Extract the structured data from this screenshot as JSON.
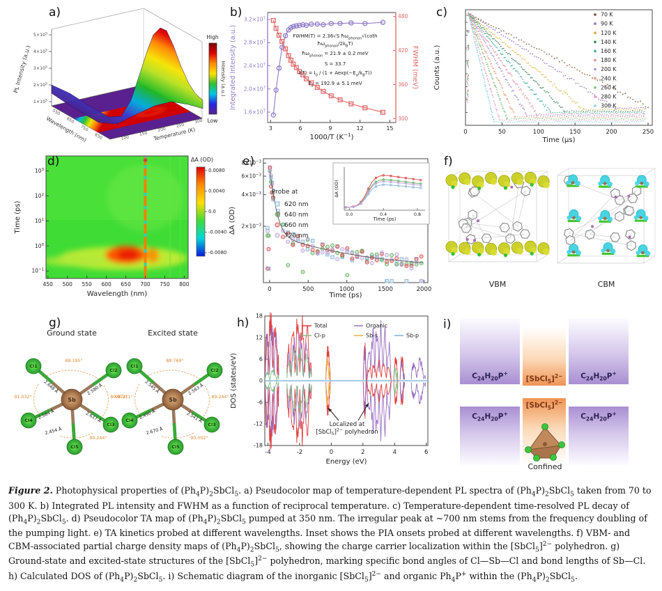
{
  "caption": {
    "label": "Figure 2.",
    "text": " Photophysical properties of (Ph_{4}P)_{2}SbCl_{5}. a) Pseudocolor map of temperature-dependent PL spectra of (Ph_{4}P)_{2}SbCl_{5} taken from 70 to 300 K. b) Integrated PL intensity and FWHM as a function of reciprocal temperature. c) Temperature-dependent time-resolved PL decay of (Ph_{4}P)_{2}SbCl_{5}. d) Pseudocolor TA map of (Ph_{4}P)_{2}SbCl_{5} pumped at 350 nm. The irregular peak at ~700 nm stems from the frequency doubling of the pumping light. e) TA kinetics probed at different wavelengths. Inset shows the PIA onsets probed at different wavelengths. f) VBM- and CBM-associated partial charge density maps of (Ph_{4}P)_{2}SbCl_{5}, showing the charge carrier localization within the [SbCl_{5}]^{2−} polyhedron. g) Ground-state and excited-state structures of the [SbCl_{5}]^{2−} polyhedron, marking specific bond angles of Cl—Sb—Cl and bond lengths of Sb—Cl. h) Calculated DOS of (Ph_{4}P)_{2}SbCl_{5}. i) Schematic diagram of the inorganic [SbCl_{5}]^{2−} and organic Ph_{4}P^{+} within the (Ph_{4}P)_{2}SbCl_{5}."
  },
  "panels": {
    "a": {
      "label": "a)"
    },
    "b": {
      "label": "b)",
      "equations": [
        "FWHM(T) = 2.36√S ħω_{phonon}√(coth ħω_{phonon}/2k_{B}T)",
        "ħω_{phonon} = 21.9 ± 0.2 meV",
        "S = 33.7",
        "I(T) = I_{0} / (1 + Aexp(−E_{a}/k_{B}T))",
        "E_{a} = 192.9 ± 5.1 meV"
      ]
    },
    "c": {
      "label": "c)"
    },
    "d": {
      "label": "d)"
    },
    "e": {
      "label": "e)"
    },
    "f": {
      "label": "f)",
      "left_label": "VBM",
      "right_label": "CBM"
    },
    "g": {
      "label": "g)",
      "atoms": {
        "sb": "Sb",
        "cl": [
          "Cl1",
          "Cl2",
          "Cl3",
          "Cl4",
          "Cl5"
        ]
      },
      "ground": {
        "title": "Ground state",
        "bonds": [
          "2.648 Å",
          "2.580 Å",
          "2.637 Å",
          "2.584 Å",
          "2.454 Å"
        ],
        "angles": [
          "88.195°",
          "89.972°",
          "90.244°",
          "91.032°"
        ]
      },
      "excited": {
        "title": "Excited state",
        "bonds": [
          "2.545 Å",
          "2.563 Å",
          "2.541 Å",
          "2.490 Å",
          "2.670 Å"
        ],
        "angles": [
          "88.769°",
          "89.244°",
          "90.002°",
          "90.211°"
        ]
      }
    },
    "h": {
      "label": "h)"
    },
    "i": {
      "label": "i)",
      "cation": "C_{24}H_{20}P^{+}",
      "anion": "[SbCl_{5}]^{2−}",
      "confined": "Confined"
    }
  },
  "chart_data": [
    {
      "panel": "a",
      "type": "surface",
      "zlabel": "PL Intensity (a.u.)",
      "zticks": [
        "5×10^{5}",
        "4×10^{5}",
        "3×10^{5}",
        "2×10^{5}",
        "1×10^{5}"
      ],
      "xlabel": "Wavelength (nm)",
      "xticks": [
        "550",
        "650",
        "750",
        "850"
      ],
      "ylabel": "Temperature (K)",
      "yticks": [
        "100",
        "150",
        "200",
        "250",
        "300"
      ],
      "colorbar": {
        "title": "Intensity (a.u.)",
        "high": "High",
        "low": "Low",
        "colors": [
          "#7a0000",
          "#e00000",
          "#ff8c00",
          "#ffe000",
          "#30c030",
          "#00c8e8",
          "#2828e0",
          "#5a2090"
        ]
      }
    },
    {
      "panel": "b",
      "type": "scatter-line",
      "xlabel": "1000/T (K^{−1})",
      "xticks": [
        3,
        6,
        9,
        12,
        15
      ],
      "xlim": [
        2.7,
        15.6
      ],
      "left_axis": {
        "label": "Integrated Intensity (a.u.)",
        "color": "#8f7bc8",
        "ticks": [
          "1.6×10^{7}",
          "2.0×10^{7}",
          "2.4×10^{7}",
          "2.8×10^{7}",
          "3.2×10^{7}"
        ],
        "tick_values": [
          1.6,
          2.0,
          2.4,
          2.8,
          3.2
        ],
        "lim": [
          1.42,
          3.32
        ]
      },
      "right_axis": {
        "label": "FWHM (meV)",
        "color": "#e06666",
        "ticks": [
          300,
          360,
          420,
          480
        ],
        "lim": [
          293,
          487
        ]
      },
      "x": [
        3.28,
        3.55,
        3.85,
        4.15,
        4.5,
        4.8,
        5.05,
        5.3,
        5.6,
        5.9,
        6.25,
        6.6,
        7.1,
        7.7,
        8.3,
        9.1,
        10.0,
        11.1,
        12.5,
        14.3
      ],
      "series": [
        {
          "name": "Integrated Intensity",
          "marker": "circle",
          "color": "#8f7bc8",
          "values": [
            1.55,
            1.98,
            2.36,
            2.72,
            2.92,
            3.02,
            3.06,
            3.08,
            3.09,
            3.1,
            3.11,
            3.1,
            3.12,
            3.12,
            3.11,
            3.13,
            3.13,
            3.14,
            3.13,
            3.15
          ]
        },
        {
          "name": "FWHM",
          "marker": "square",
          "color": "#e06666",
          "values": [
            473,
            459,
            447,
            436,
            423,
            411,
            403,
            396,
            390,
            383,
            377,
            370,
            363,
            355,
            348,
            340,
            333,
            326,
            319,
            311
          ]
        }
      ]
    },
    {
      "panel": "c",
      "type": "decay-scatter",
      "xlabel": "Time (μs)",
      "xticks": [
        0,
        50,
        100,
        150,
        200,
        250
      ],
      "xlim": [
        0,
        250
      ],
      "ylabel": "Counts (a.u.)",
      "series": [
        {
          "label": "70 K",
          "color": "#7b4a2d",
          "t_end": 250
        },
        {
          "label": "90 K",
          "color": "#8d6cc3",
          "t_end": 205
        },
        {
          "label": "120 K",
          "color": "#e3a92f",
          "t_end": 162
        },
        {
          "label": "140 K",
          "color": "#2f7d4f",
          "t_end": 136
        },
        {
          "label": "160 K",
          "color": "#37a695",
          "t_end": 116
        },
        {
          "label": "180 K",
          "color": "#e2889b",
          "t_end": 98
        },
        {
          "label": "200 K",
          "color": "#a98fd6",
          "t_end": 84
        },
        {
          "label": "240 K",
          "color": "#ec9f7a",
          "t_end": 68
        },
        {
          "label": "260 K",
          "color": "#79c079",
          "t_end": 57
        },
        {
          "label": "280 K",
          "color": "#f0a0b8",
          "t_end": 47
        },
        {
          "label": "300 K",
          "color": "#7fd4e8",
          "t_end": 39
        }
      ]
    },
    {
      "panel": "d",
      "type": "heatmap",
      "xlabel": "Wavelength (nm)",
      "xticks": [
        450,
        500,
        550,
        600,
        650,
        700,
        750,
        800
      ],
      "ylabel": "Time (ps)",
      "yticks": [
        "10^{3}",
        "10^{2}",
        "10^{1}",
        "10^{0}",
        "10^{−1}"
      ],
      "base_color": "#3fdc35",
      "stripe_nm": 700,
      "hot_region": {
        "wavelength_nm": [
          590,
          700
        ],
        "time_ps": [
          0.2,
          1.5
        ]
      },
      "colorbar": {
        "title": "ΔA (OD)",
        "ticks": [
          "0.0080",
          "0.0040",
          "0.0",
          "-0.0040",
          "-0.0080"
        ],
        "colors": [
          "#e00000",
          "#ff8c00",
          "#ffe000",
          "#3fdc35",
          "#00d8d8",
          "#0018e0"
        ]
      }
    },
    {
      "panel": "e",
      "type": "kinetics-scatter",
      "xlabel": "Time (ps)",
      "xticks": [
        0,
        500,
        1000,
        1500,
        2000
      ],
      "ylabel": "ΔA (OD)",
      "yticks": [
        "8×10^{−3}",
        "6×10^{−3}",
        "4×10^{−3}",
        "2×10^{−3}"
      ],
      "ytick_values": [
        0.008,
        0.006,
        0.004,
        0.002
      ],
      "legend_title": "Probe at",
      "series": [
        {
          "label": "620 nm",
          "color": "#92bedd",
          "marker": "square",
          "inset_peak": 0.64
        },
        {
          "label": "640 nm",
          "color": "#67b567",
          "marker": "circle",
          "inset_peak": 0.78
        },
        {
          "label": "660 nm",
          "color": "#d9534f",
          "marker": "circle",
          "inset_peak": 0.9
        },
        {
          "label": "720 nm",
          "color": "#bfa8e0",
          "marker": "circle",
          "inset_peak": 0.73
        }
      ],
      "decay_model": {
        "offset": 0.0008,
        "a1": 0.0009,
        "tau1": 900,
        "a2": 0.0053,
        "tau2": 60
      },
      "inset": {
        "xlabel": "Time (ps)",
        "xticks": [
          "0.0",
          "0.4",
          "0.8"
        ],
        "ylabel": "ΔA (OD)"
      }
    },
    {
      "panel": "h",
      "type": "dos",
      "xlabel": "Energy (eV)",
      "xticks": [
        -4,
        -2,
        0,
        2,
        4,
        6
      ],
      "xlim": [
        -4.2,
        6.1
      ],
      "ylabel": "DOS (states/eV)",
      "yticks": [
        -18,
        -12,
        -6,
        0,
        6,
        12,
        18
      ],
      "ylim": [
        -18,
        18
      ],
      "legend": [
        {
          "label": "Total",
          "color": "#e03030"
        },
        {
          "label": "Organic",
          "color": "#9467bd"
        },
        {
          "label": "Cl-p",
          "color": "#7cbf7c"
        },
        {
          "label": "Sb-s",
          "color": "#e8a838"
        },
        {
          "label": "Sb-p",
          "color": "#6baed6"
        }
      ],
      "annotation": "Localized at\n[SbCl_{5}]^{2−} polyhedron",
      "bands": [
        {
          "x0": -4.18,
          "x1": -3.32,
          "comps": [
            [
              "#e03030",
              17,
              3
            ],
            [
              "#9467bd",
              14.5,
              3
            ],
            [
              "#7cbf7c",
              3,
              2
            ]
          ]
        },
        {
          "x0": -2.8,
          "x1": -1.25,
          "comps": [
            [
              "#e03030",
              16,
              5
            ],
            [
              "#9467bd",
              11,
              4
            ],
            [
              "#7cbf7c",
              8,
              4
            ]
          ]
        },
        {
          "x0": -0.34,
          "x1": -0.06,
          "comps": [
            [
              "#e03030",
              8.5,
              1
            ],
            [
              "#e8a838",
              6.5,
              1
            ]
          ]
        },
        {
          "x0": 2.02,
          "x1": 2.22,
          "comps": [
            [
              "#e03030",
              9,
              1
            ],
            [
              "#9467bd",
              8,
              1
            ]
          ]
        },
        {
          "x0": 2.25,
          "x1": 3.78,
          "comps": [
            [
              "#9467bd",
              14,
              6
            ],
            [
              "#e03030",
              5,
              5
            ]
          ]
        },
        {
          "x0": 3.95,
          "x1": 4.2,
          "comps": [
            [
              "#e03030",
              6,
              1
            ],
            [
              "#7cbf7c",
              4,
              1
            ]
          ]
        },
        {
          "x0": 4.35,
          "x1": 4.62,
          "comps": [
            [
              "#e03030",
              6.5,
              1
            ],
            [
              "#9467bd",
              5,
              1
            ]
          ]
        },
        {
          "x0": 5.05,
          "x1": 5.95,
          "comps": [
            [
              "#9467bd",
              5.5,
              2
            ]
          ]
        }
      ]
    }
  ]
}
